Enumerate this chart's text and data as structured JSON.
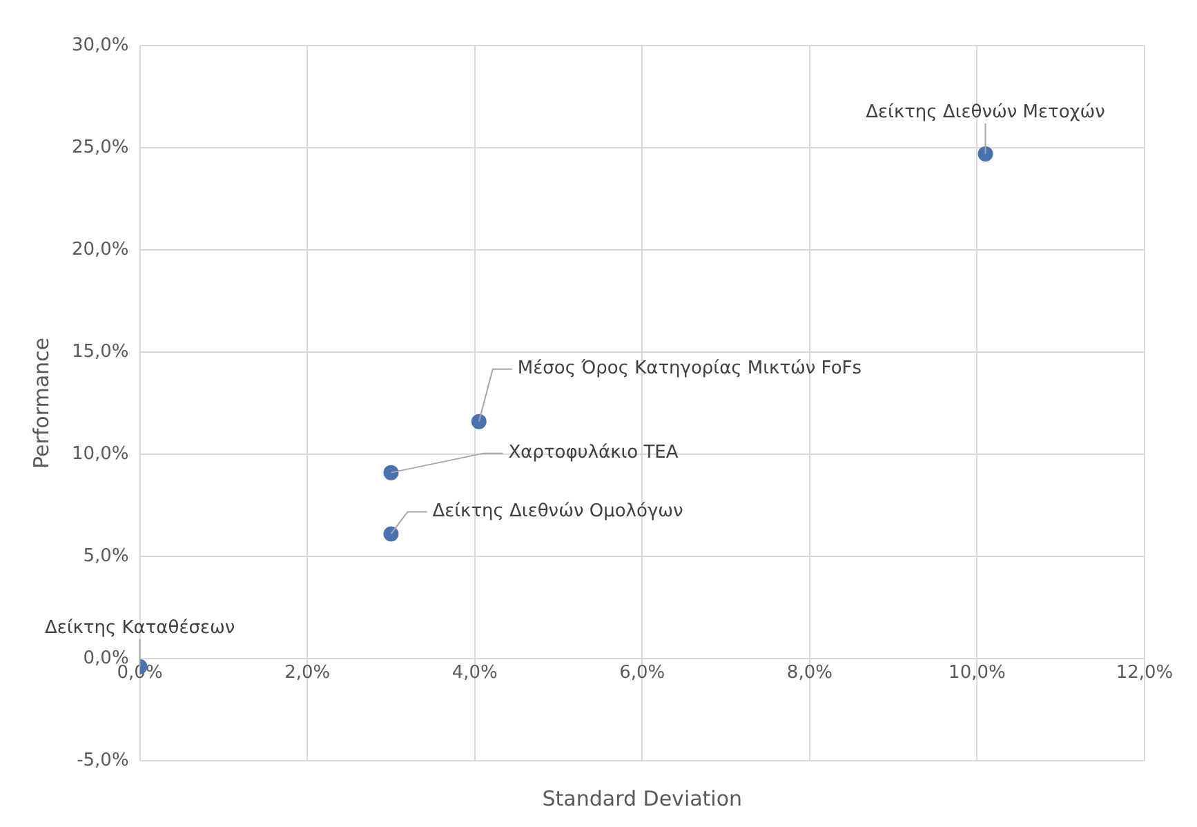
{
  "chart_data": {
    "type": "scatter",
    "xlabel": "Standard Deviation",
    "ylabel": "Performance",
    "series": [
      {
        "color": "#4a72b0",
        "x": [
          0,
          3.0,
          3.0,
          4.05,
          10.1
        ],
        "values": [
          -0.4,
          6.1,
          9.1,
          11.6,
          24.7
        ]
      }
    ],
    "annotations": [
      {
        "text": "Δείκτης Καταθέσεων",
        "x": 0,
        "y": -0.4
      },
      {
        "text": "Δείκτης Διεθνών Ομολόγων",
        "x": 3.0,
        "y": 6.1
      },
      {
        "text": "Χαρτοφυλάκιο TEA",
        "x": 3.0,
        "y": 9.1
      },
      {
        "text": "Μέσος Όρος Κατηγορίας Μικτών FoFs",
        "x": 4.05,
        "y": 11.6
      },
      {
        "text": "Δείκτης Διεθνών Μετοχών",
        "x": 10.1,
        "y": 24.7
      }
    ],
    "xlim": [
      0,
      12
    ],
    "xticks": [
      {
        "value": 0,
        "label": "0,0%"
      },
      {
        "value": 2,
        "label": "2,0%"
      },
      {
        "value": 4,
        "label": "4,0%"
      },
      {
        "value": 6,
        "label": "6,0%"
      },
      {
        "value": 8,
        "label": "8,0%"
      },
      {
        "value": 10,
        "label": "10,0%"
      },
      {
        "value": 12,
        "label": "12,0%"
      }
    ],
    "ylim": [
      -5,
      30
    ],
    "yticks": [
      {
        "value": -5,
        "label": "-5,0%"
      },
      {
        "value": 0,
        "label": "0,0%"
      },
      {
        "value": 5,
        "label": "5,0%"
      },
      {
        "value": 10,
        "label": "10,0%"
      },
      {
        "value": 15,
        "label": "15,0%"
      },
      {
        "value": 20,
        "label": "20,0%"
      },
      {
        "value": 25,
        "label": "25,0%"
      },
      {
        "value": 30,
        "label": "30,0%"
      }
    ],
    "grid": true,
    "marker": "circle",
    "legend": false
  }
}
